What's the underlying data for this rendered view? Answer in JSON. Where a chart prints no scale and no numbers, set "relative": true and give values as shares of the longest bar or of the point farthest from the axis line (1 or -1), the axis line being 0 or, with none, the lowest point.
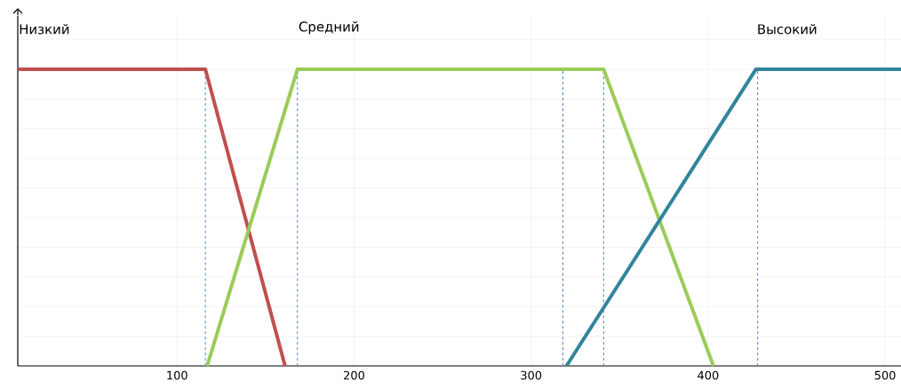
{
  "chart_data": {
    "type": "line",
    "relative": true,
    "xlim": [
      10,
      509
    ],
    "xticks": [
      100,
      200,
      300,
      400,
      500
    ],
    "grid": true,
    "line_style": "solid",
    "series": [
      {
        "name": "Низкий",
        "color": "#c0504d",
        "x": [
          10,
          116,
          161
        ],
        "values": [
          1,
          1,
          0
        ]
      },
      {
        "name": "Средний",
        "color": "#9bcb59",
        "x": [
          117,
          168,
          341,
          403
        ],
        "values": [
          0,
          1,
          1,
          0
        ]
      },
      {
        "name": "Высокий",
        "color": "#31859c",
        "x": [
          320,
          427,
          509
        ],
        "values": [
          0,
          1,
          1
        ]
      }
    ],
    "ref_lines": [
      {
        "axis": "x",
        "value": 116,
        "color": "#4f81bd",
        "line_style": "dashed"
      },
      {
        "axis": "x",
        "value": 168,
        "color": "#4f81bd",
        "line_style": "dashed"
      },
      {
        "axis": "x",
        "value": 318,
        "color": "#4f81bd",
        "line_style": "dashed"
      },
      {
        "axis": "x",
        "value": 341,
        "color": "#4f81bd",
        "line_style": "dashed"
      },
      {
        "axis": "x",
        "value": 428,
        "color": "#4f81bd",
        "line_style": "dashed"
      }
    ]
  }
}
